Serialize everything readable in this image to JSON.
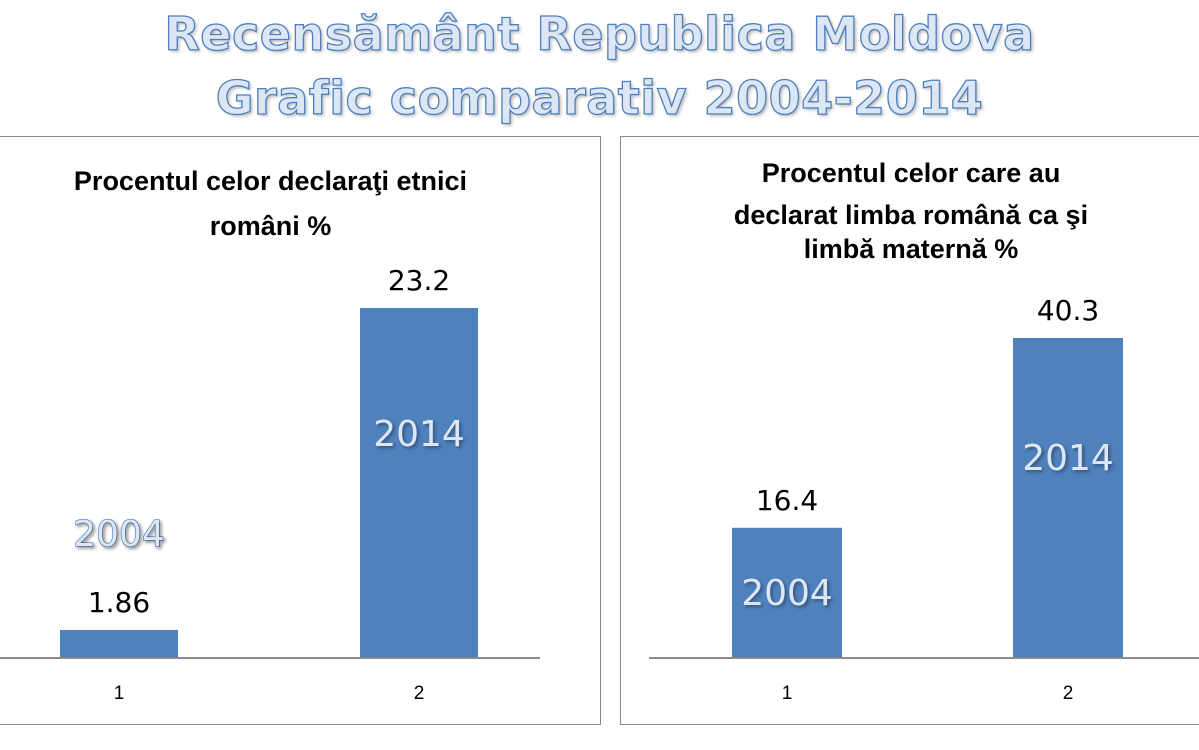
{
  "header": {
    "title_line1": "Recensământ Republica Moldova",
    "title_line2": "Grafic comparativ 2004-2014"
  },
  "colors": {
    "bar": "#4f81bd",
    "axis": "#8c8c8c",
    "title_fill": "#dde6f3",
    "title_outline": "#4f7fbf"
  },
  "chart_data": [
    {
      "type": "bar",
      "title_lines": [
        "Procentul celor declaraţi etnici",
        "români %"
      ],
      "categories": [
        "1",
        "2"
      ],
      "values": [
        1.86,
        23.2
      ],
      "data_labels": [
        "1.86",
        "23.2"
      ],
      "bar_labels": [
        "2004",
        "2014"
      ],
      "ylim": [
        0,
        23.2
      ],
      "grid": false,
      "legend": "none"
    },
    {
      "type": "bar",
      "title_lines": [
        "Procentul celor care au",
        "declarat limba română ca şi",
        "limbă maternă %"
      ],
      "categories": [
        "1",
        "2"
      ],
      "values": [
        16.4,
        40.3
      ],
      "data_labels": [
        "16.4",
        "40.3"
      ],
      "bar_labels": [
        "2004",
        "2014"
      ],
      "ylim": [
        0,
        40.3
      ],
      "grid": false,
      "legend": "none"
    }
  ]
}
